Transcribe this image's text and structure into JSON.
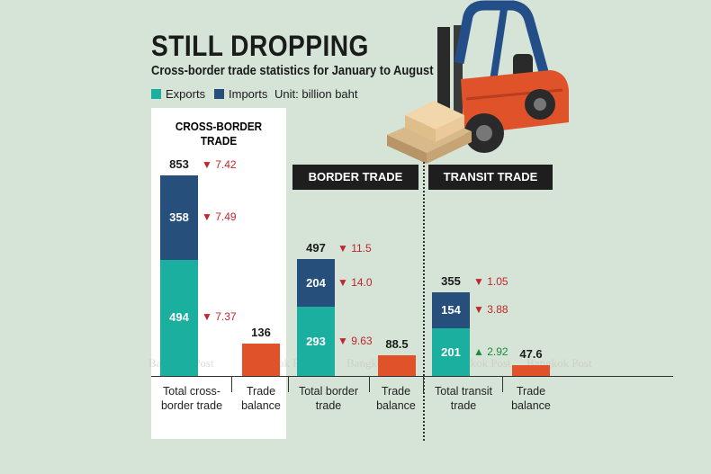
{
  "header": {
    "title": "STILL DROPPING",
    "subtitle": "Cross-border trade statistics for January to August"
  },
  "legend": {
    "exports": "Exports",
    "imports": "Imports",
    "unit": "Unit: billion baht"
  },
  "sections": {
    "cross_border": "CROSS-BORDER TRADE",
    "border": "BORDER TRADE",
    "transit": "TRANSIT TRADE"
  },
  "watermark": "Bangkok Post",
  "colors": {
    "exports": "#1aaf9f",
    "imports": "#274f7c",
    "balance": "#e0522a",
    "down": "#c0262c",
    "up": "#1e8a3a"
  },
  "chart_data": {
    "type": "bar",
    "title": "STILL DROPPING",
    "subtitle": "Cross-border trade statistics for January to August",
    "unit": "billion baht",
    "categories": [
      "Total cross-border trade",
      "Trade balance",
      "Total border trade",
      "Trade balance",
      "Total transit trade",
      "Trade balance"
    ],
    "groups": [
      {
        "name": "CROSS-BORDER TRADE",
        "label": "Total cross-border trade",
        "total": 853,
        "total_label": "853",
        "total_change": "7.42",
        "total_dir": "down",
        "exports": 494,
        "exports_label": "494",
        "exports_change": "7.37",
        "exports_dir": "down",
        "imports": 358,
        "imports_label": "358",
        "imports_change": "7.49",
        "imports_dir": "down",
        "balance": 136,
        "balance_label": "136"
      },
      {
        "name": "BORDER TRADE",
        "label": "Total border trade",
        "total": 497,
        "total_label": "497",
        "total_change": "11.5",
        "total_dir": "down",
        "exports": 293,
        "exports_label": "293",
        "exports_change": "9.63",
        "exports_dir": "down",
        "imports": 204,
        "imports_label": "204",
        "imports_change": "14.0",
        "imports_dir": "down",
        "balance": 88.5,
        "balance_label": "88.5"
      },
      {
        "name": "TRANSIT TRADE",
        "label": "Total transit trade",
        "total": 355,
        "total_label": "355",
        "total_change": "1.05",
        "total_dir": "down",
        "exports": 201,
        "exports_label": "201",
        "exports_change": "2.92",
        "exports_dir": "up",
        "imports": 154,
        "imports_label": "154",
        "imports_change": "3.88",
        "imports_dir": "down",
        "balance": 47.6,
        "balance_label": "47.6"
      }
    ],
    "balance_label": "Trade balance",
    "series": [
      {
        "name": "Exports",
        "values": [
          494,
          null,
          293,
          null,
          201,
          null
        ]
      },
      {
        "name": "Imports",
        "values": [
          358,
          null,
          204,
          null,
          154,
          null
        ]
      },
      {
        "name": "Trade balance",
        "values": [
          null,
          136,
          null,
          88.5,
          null,
          47.6
        ]
      }
    ],
    "ylim": [
      0,
      853
    ]
  }
}
